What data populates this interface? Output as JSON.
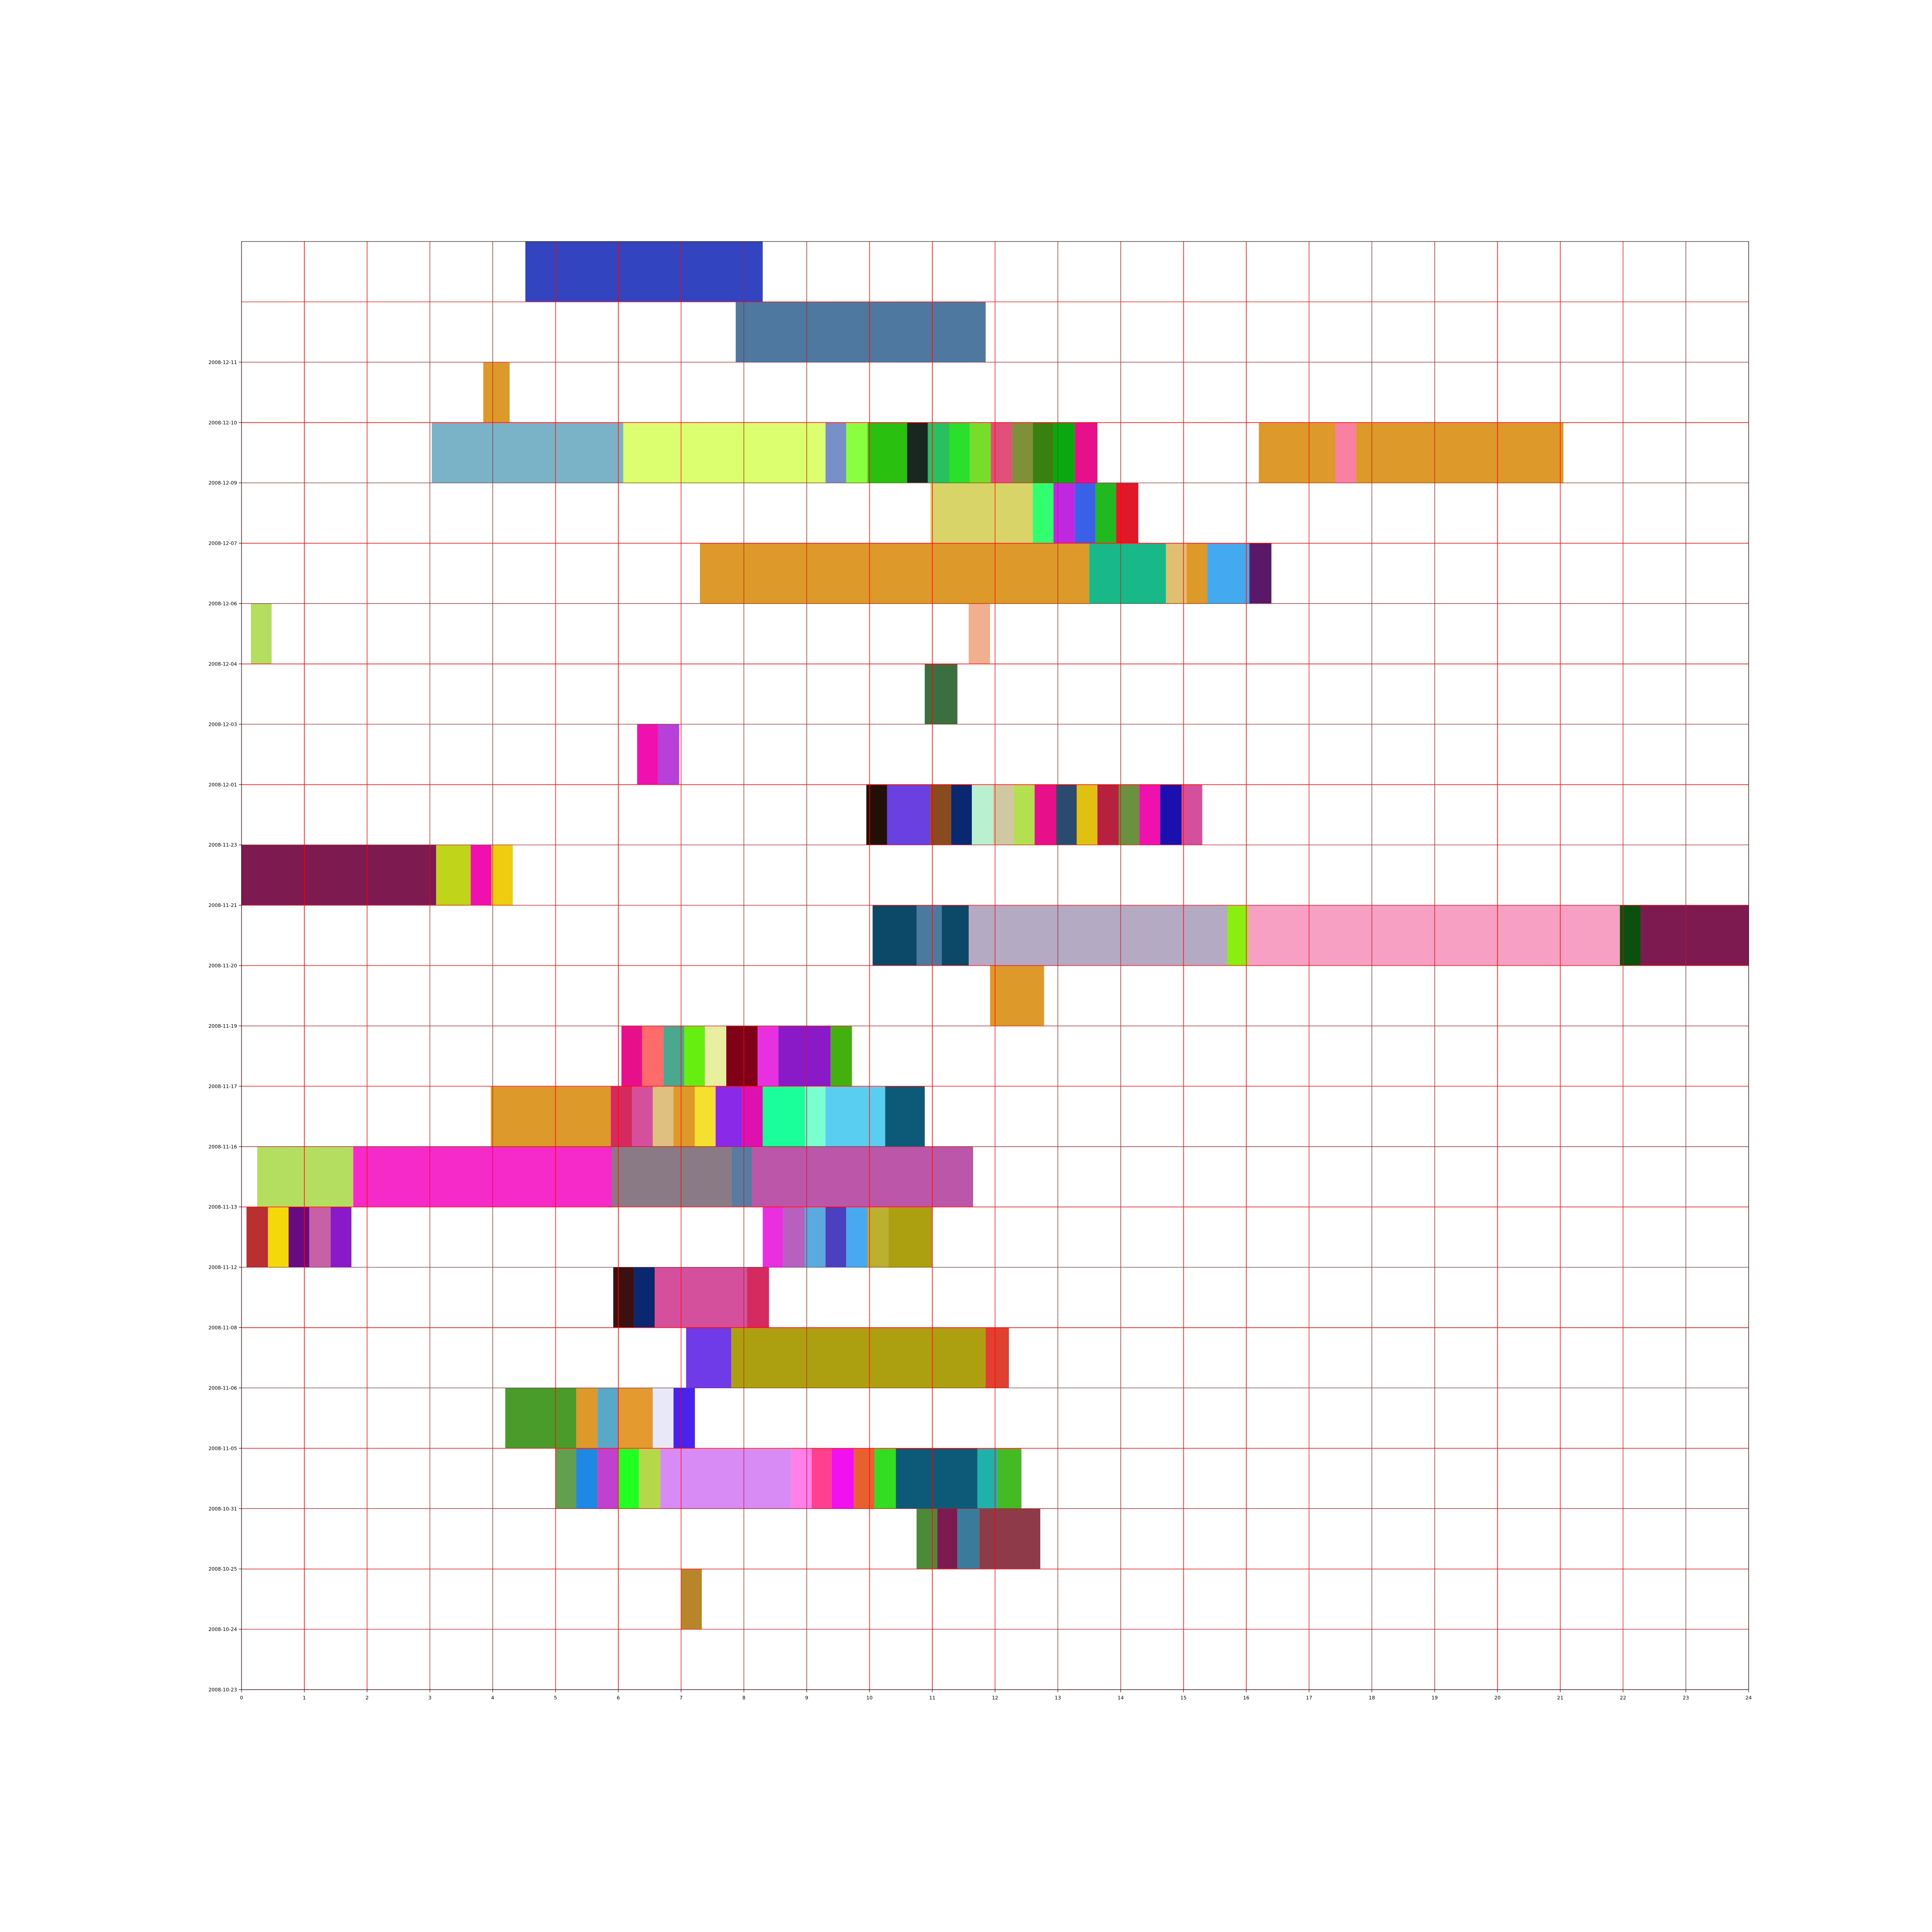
{
  "chart_data": {
    "type": "bar",
    "orientation": "horizontal",
    "title": "",
    "xlabel": "",
    "ylabel": "",
    "xlim": [
      0,
      24
    ],
    "x_ticks": [
      "0",
      "1",
      "2",
      "3",
      "4",
      "5",
      "6",
      "7",
      "8",
      "9",
      "10",
      "11",
      "12",
      "13",
      "14",
      "15",
      "16",
      "17",
      "18",
      "19",
      "20",
      "21",
      "22",
      "23",
      "24"
    ],
    "grid": true,
    "grid_color": "#ff0000",
    "rows": [
      {
        "label": "2008-10-23",
        "segments": []
      },
      {
        "label": "2008-10-24",
        "segments": [
          {
            "start": 7.0,
            "end": 7.33,
            "color": "#b8862a"
          }
        ]
      },
      {
        "label": "2008-10-25",
        "segments": [
          {
            "start": 10.75,
            "end": 11.08,
            "color": "#4a8a38"
          },
          {
            "start": 11.08,
            "end": 11.4,
            "color": "#7d1a50"
          },
          {
            "start": 11.4,
            "end": 11.75,
            "color": "#3a7a9a"
          },
          {
            "start": 11.75,
            "end": 12.72,
            "color": "#8e3a48"
          }
        ]
      },
      {
        "label": "2008-10-31",
        "segments": [
          {
            "start": 5.0,
            "end": 5.33,
            "color": "#62a050"
          },
          {
            "start": 5.33,
            "end": 5.67,
            "color": "#1e88e5"
          },
          {
            "start": 5.67,
            "end": 6.0,
            "color": "#c040d0"
          },
          {
            "start": 6.0,
            "end": 6.33,
            "color": "#22ff22"
          },
          {
            "start": 6.33,
            "end": 6.67,
            "color": "#b4d84a"
          },
          {
            "start": 6.67,
            "end": 8.75,
            "color": "#d88af5"
          },
          {
            "start": 8.75,
            "end": 9.08,
            "color": "#ff80e8"
          },
          {
            "start": 9.08,
            "end": 9.4,
            "color": "#ff4090"
          },
          {
            "start": 9.4,
            "end": 9.75,
            "color": "#f010f0"
          },
          {
            "start": 9.75,
            "end": 10.08,
            "color": "#e86030"
          },
          {
            "start": 10.08,
            "end": 10.42,
            "color": "#33dd22"
          },
          {
            "start": 10.42,
            "end": 11.72,
            "color": "#0c5a78"
          },
          {
            "start": 11.72,
            "end": 12.04,
            "color": "#20b2aa"
          },
          {
            "start": 12.04,
            "end": 12.42,
            "color": "#44bb22"
          }
        ]
      },
      {
        "label": "2008-11-05",
        "segments": [
          {
            "start": 4.2,
            "end": 5.33,
            "color": "#4a9c2a"
          },
          {
            "start": 5.33,
            "end": 5.67,
            "color": "#dd9a2a"
          },
          {
            "start": 5.67,
            "end": 6.0,
            "color": "#5aa8c8"
          },
          {
            "start": 6.0,
            "end": 6.55,
            "color": "#e59a30"
          },
          {
            "start": 6.55,
            "end": 6.88,
            "color": "#e8e8f8"
          },
          {
            "start": 6.88,
            "end": 7.22,
            "color": "#4a22ee"
          }
        ]
      },
      {
        "label": "2008-11-06",
        "segments": [
          {
            "start": 7.08,
            "end": 7.8,
            "color": "#6f3ae8"
          },
          {
            "start": 7.8,
            "end": 11.85,
            "color": "#ada010"
          },
          {
            "start": 11.85,
            "end": 12.22,
            "color": "#e04030"
          }
        ]
      },
      {
        "label": "2008-11-08",
        "segments": [
          {
            "start": 5.92,
            "end": 6.25,
            "color": "#3a1010"
          },
          {
            "start": 6.25,
            "end": 6.58,
            "color": "#0a2870"
          },
          {
            "start": 6.58,
            "end": 8.05,
            "color": "#d4509c"
          },
          {
            "start": 8.05,
            "end": 8.4,
            "color": "#d42a60"
          }
        ]
      },
      {
        "label": "2008-11-12",
        "segments": [
          {
            "start": 0.08,
            "end": 0.42,
            "color": "#b83030"
          },
          {
            "start": 0.42,
            "end": 0.75,
            "color": "#f5d80a"
          },
          {
            "start": 0.75,
            "end": 1.08,
            "color": "#6a0a80"
          },
          {
            "start": 1.08,
            "end": 1.42,
            "color": "#c860a8"
          },
          {
            "start": 1.42,
            "end": 1.75,
            "color": "#8a1ac8"
          },
          {
            "start": 8.3,
            "end": 8.63,
            "color": "#e830e0"
          },
          {
            "start": 8.63,
            "end": 8.97,
            "color": "#b860c0"
          },
          {
            "start": 8.97,
            "end": 9.3,
            "color": "#5aaae0"
          },
          {
            "start": 9.3,
            "end": 9.63,
            "color": "#4a40c0"
          },
          {
            "start": 9.63,
            "end": 9.97,
            "color": "#48a8f0"
          },
          {
            "start": 9.97,
            "end": 10.3,
            "color": "#bcb030"
          },
          {
            "start": 10.3,
            "end": 11.0,
            "color": "#ada010"
          }
        ]
      },
      {
        "label": "2008-11-13",
        "segments": [
          {
            "start": 0.25,
            "end": 1.78,
            "color": "#b4de60"
          },
          {
            "start": 1.78,
            "end": 5.9,
            "color": "#f52ac8"
          },
          {
            "start": 5.9,
            "end": 7.8,
            "color": "#8a7a86"
          },
          {
            "start": 7.8,
            "end": 8.13,
            "color": "#5a7aa0"
          },
          {
            "start": 8.13,
            "end": 11.65,
            "color": "#bc56a8"
          }
        ]
      },
      {
        "label": "2008-11-16",
        "segments": [
          {
            "start": 3.97,
            "end": 5.88,
            "color": "#dd9a2a"
          },
          {
            "start": 5.88,
            "end": 6.22,
            "color": "#d42a60"
          },
          {
            "start": 6.22,
            "end": 6.55,
            "color": "#d4509c"
          },
          {
            "start": 6.55,
            "end": 6.88,
            "color": "#e0c080"
          },
          {
            "start": 6.88,
            "end": 7.22,
            "color": "#dd9a2a"
          },
          {
            "start": 7.22,
            "end": 7.55,
            "color": "#f5e030"
          },
          {
            "start": 7.55,
            "end": 7.97,
            "color": "#8a2ae8"
          },
          {
            "start": 7.97,
            "end": 8.3,
            "color": "#e010b0"
          },
          {
            "start": 8.3,
            "end": 8.97,
            "color": "#1aff9a"
          },
          {
            "start": 8.97,
            "end": 9.3,
            "color": "#7affd0"
          },
          {
            "start": 9.3,
            "end": 10.25,
            "color": "#5acef0"
          },
          {
            "start": 10.25,
            "end": 10.88,
            "color": "#0c5a78"
          }
        ]
      },
      {
        "label": "2008-11-17",
        "segments": [
          {
            "start": 6.05,
            "end": 6.38,
            "color": "#e8108a"
          },
          {
            "start": 6.38,
            "end": 6.72,
            "color": "#ff6a6a"
          },
          {
            "start": 6.72,
            "end": 7.05,
            "color": "#4aa890"
          },
          {
            "start": 7.05,
            "end": 7.38,
            "color": "#66ee10"
          },
          {
            "start": 7.38,
            "end": 7.72,
            "color": "#e8f0a0"
          },
          {
            "start": 7.72,
            "end": 8.22,
            "color": "#800018"
          },
          {
            "start": 8.22,
            "end": 8.55,
            "color": "#e830e0"
          },
          {
            "start": 8.55,
            "end": 9.38,
            "color": "#8a1ac8"
          },
          {
            "start": 9.38,
            "end": 9.72,
            "color": "#44b010"
          }
        ]
      },
      {
        "label": "2008-11-19",
        "segments": [
          {
            "start": 11.92,
            "end": 12.78,
            "color": "#dd9a2a"
          }
        ]
      },
      {
        "label": "2008-11-20",
        "segments": [
          {
            "start": 10.05,
            "end": 10.75,
            "color": "#0c4868"
          },
          {
            "start": 10.75,
            "end": 11.15,
            "color": "#4a7aa0"
          },
          {
            "start": 11.15,
            "end": 11.58,
            "color": "#0c4868"
          },
          {
            "start": 11.58,
            "end": 15.7,
            "color": "#b4aac4"
          },
          {
            "start": 15.7,
            "end": 16.03,
            "color": "#8aee10"
          },
          {
            "start": 16.03,
            "end": 21.95,
            "color": "#f8a0c4"
          },
          {
            "start": 21.95,
            "end": 22.28,
            "color": "#0c5010"
          },
          {
            "start": 22.28,
            "end": 24.0,
            "color": "#7d1a50"
          }
        ]
      },
      {
        "label": "2008-11-21",
        "segments": [
          {
            "start": 0.0,
            "end": 3.1,
            "color": "#7d1a50"
          },
          {
            "start": 3.1,
            "end": 3.65,
            "color": "#c0d41a"
          },
          {
            "start": 3.65,
            "end": 3.98,
            "color": "#f010b0"
          },
          {
            "start": 3.98,
            "end": 4.32,
            "color": "#f0cc10"
          }
        ]
      },
      {
        "label": "2008-11-23",
        "segments": [
          {
            "start": 9.95,
            "end": 10.28,
            "color": "#221008"
          },
          {
            "start": 10.28,
            "end": 10.97,
            "color": "#6a40e0"
          },
          {
            "start": 10.97,
            "end": 11.3,
            "color": "#8a4a20"
          },
          {
            "start": 11.3,
            "end": 11.63,
            "color": "#0a2870"
          },
          {
            "start": 11.63,
            "end": 11.97,
            "color": "#b8f0d0"
          },
          {
            "start": 11.97,
            "end": 12.3,
            "color": "#d0c8a0"
          },
          {
            "start": 12.3,
            "end": 12.63,
            "color": "#b4e050"
          },
          {
            "start": 12.63,
            "end": 12.97,
            "color": "#e8108a"
          },
          {
            "start": 12.97,
            "end": 13.3,
            "color": "#2a4a70"
          },
          {
            "start": 13.3,
            "end": 13.63,
            "color": "#e0c010"
          },
          {
            "start": 13.63,
            "end": 13.97,
            "color": "#b82040"
          },
          {
            "start": 13.97,
            "end": 14.3,
            "color": "#6a9040"
          },
          {
            "start": 14.3,
            "end": 14.63,
            "color": "#f010b0"
          },
          {
            "start": 14.63,
            "end": 14.97,
            "color": "#1a10b0"
          },
          {
            "start": 14.97,
            "end": 15.3,
            "color": "#d4509c"
          }
        ]
      },
      {
        "label": "2008-12-01",
        "segments": [
          {
            "start": 6.3,
            "end": 6.63,
            "color": "#f010b0"
          },
          {
            "start": 6.63,
            "end": 6.97,
            "color": "#b840d8"
          }
        ]
      },
      {
        "label": "2008-12-03",
        "segments": [
          {
            "start": 10.88,
            "end": 11.4,
            "color": "#3a7040"
          }
        ]
      },
      {
        "label": "2008-12-04",
        "segments": [
          {
            "start": 0.15,
            "end": 0.48,
            "color": "#b4de60"
          },
          {
            "start": 11.58,
            "end": 11.92,
            "color": "#f0b090"
          }
        ]
      },
      {
        "label": "2008-12-06",
        "segments": [
          {
            "start": 7.3,
            "end": 13.5,
            "color": "#dd9a2a"
          },
          {
            "start": 13.5,
            "end": 14.72,
            "color": "#18b888"
          },
          {
            "start": 14.72,
            "end": 15.05,
            "color": "#e0c070"
          },
          {
            "start": 15.05,
            "end": 15.38,
            "color": "#dd9a2a"
          },
          {
            "start": 15.38,
            "end": 16.05,
            "color": "#44aaf0"
          },
          {
            "start": 16.05,
            "end": 16.4,
            "color": "#5a1868"
          }
        ]
      },
      {
        "label": "2008-12-07",
        "segments": [
          {
            "start": 10.97,
            "end": 12.6,
            "color": "#d8d468"
          },
          {
            "start": 12.6,
            "end": 12.93,
            "color": "#30ff70"
          },
          {
            "start": 12.93,
            "end": 13.27,
            "color": "#c028e0"
          },
          {
            "start": 13.27,
            "end": 13.6,
            "color": "#3a60e8"
          },
          {
            "start": 13.6,
            "end": 13.93,
            "color": "#22b822"
          },
          {
            "start": 13.93,
            "end": 14.28,
            "color": "#e01828"
          }
        ]
      },
      {
        "label": "2008-12-09",
        "segments": [
          {
            "start": 3.03,
            "end": 6.08,
            "color": "#7ab2c8"
          },
          {
            "start": 6.08,
            "end": 9.3,
            "color": "#dcff70"
          },
          {
            "start": 9.3,
            "end": 9.63,
            "color": "#7890c8"
          },
          {
            "start": 9.63,
            "end": 9.97,
            "color": "#8aff40"
          },
          {
            "start": 9.97,
            "end": 10.6,
            "color": "#2ac010"
          },
          {
            "start": 10.6,
            "end": 10.93,
            "color": "#182820"
          },
          {
            "start": 10.93,
            "end": 11.27,
            "color": "#28c060"
          },
          {
            "start": 11.27,
            "end": 11.6,
            "color": "#2ae02a"
          },
          {
            "start": 11.6,
            "end": 11.93,
            "color": "#78dc2a"
          },
          {
            "start": 11.93,
            "end": 12.27,
            "color": "#e05078"
          },
          {
            "start": 12.27,
            "end": 12.6,
            "color": "#80903a"
          },
          {
            "start": 12.6,
            "end": 12.93,
            "color": "#3a8010"
          },
          {
            "start": 12.93,
            "end": 13.27,
            "color": "#0aa810"
          },
          {
            "start": 13.27,
            "end": 13.63,
            "color": "#e8108a"
          },
          {
            "start": 16.2,
            "end": 17.42,
            "color": "#dd9a2a"
          },
          {
            "start": 17.42,
            "end": 17.75,
            "color": "#f880a0"
          },
          {
            "start": 17.75,
            "end": 21.05,
            "color": "#dd9a2a"
          }
        ]
      },
      {
        "label": "2008-12-10",
        "segments": [
          {
            "start": 3.85,
            "end": 4.27,
            "color": "#dd9a2a"
          }
        ]
      },
      {
        "label": "2008-12-11",
        "segments": [
          {
            "start": 7.87,
            "end": 11.85,
            "color": "#4e78a0"
          }
        ]
      },
      {
        "label": "",
        "segments": [
          {
            "start": 4.52,
            "end": 8.3,
            "color": "#3344c0"
          }
        ]
      }
    ]
  }
}
